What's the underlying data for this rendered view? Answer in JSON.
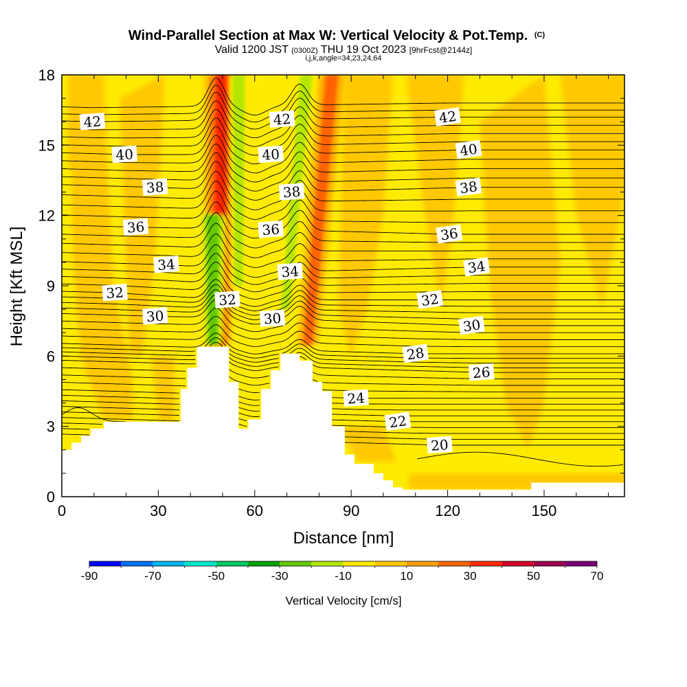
{
  "chart_data": {
    "type": "heatmap",
    "title": "Wind-Parallel Section at Max W: Vertical Velocity & Pot.Temp.",
    "title_mark": "(C)",
    "subtitle": {
      "valid": "Valid 1200 JST",
      "utc": "(0300Z)",
      "date": "THU 19 Oct 2023",
      "fcst": "[9hrFcst@2144z]"
    },
    "grid_info": "i,j,k,angle=34,23,24,64",
    "xlabel": "Distance [nm]",
    "ylabel": "Height [Kft MSL]",
    "xlim": [
      0,
      175
    ],
    "ylim": [
      0,
      18
    ],
    "x_ticks": [
      "0",
      "30",
      "60",
      "90",
      "120",
      "150"
    ],
    "y_ticks": [
      "0",
      "3",
      "6",
      "9",
      "12",
      "15",
      "18"
    ],
    "colorbar": {
      "label": "Vertical Velocity [cm/s]",
      "min": -90,
      "max": 70,
      "step": 10,
      "tick_labels": [
        "-90",
        "-70",
        "-50",
        "-30",
        "-10",
        "10",
        "30",
        "50",
        "70"
      ],
      "colors": [
        "#0000ff",
        "#0070ff",
        "#00b4f0",
        "#00e6c8",
        "#00c864",
        "#00a000",
        "#64c800",
        "#b4e600",
        "#ffeb00",
        "#ffc800",
        "#ffa000",
        "#ff6400",
        "#ff2800",
        "#d70028",
        "#a00050",
        "#780078"
      ]
    },
    "terrain_profile": [
      [
        0,
        2
      ],
      [
        3,
        2
      ],
      [
        3,
        2.3
      ],
      [
        6,
        2.3
      ],
      [
        6,
        2.6
      ],
      [
        9,
        2.6
      ],
      [
        9,
        2.9
      ],
      [
        13,
        2.9
      ],
      [
        13,
        3.2
      ],
      [
        37,
        3.2
      ],
      [
        37,
        4.6
      ],
      [
        39,
        4.6
      ],
      [
        39,
        5.5
      ],
      [
        42,
        5.5
      ],
      [
        42,
        6.4
      ],
      [
        52,
        6.4
      ],
      [
        52,
        4.9
      ],
      [
        55,
        4.9
      ],
      [
        55,
        2.9
      ],
      [
        58,
        2.9
      ],
      [
        58,
        3.3
      ],
      [
        62,
        3.3
      ],
      [
        62,
        4.6
      ],
      [
        65,
        4.6
      ],
      [
        65,
        5.4
      ],
      [
        68,
        5.4
      ],
      [
        68,
        6.1
      ],
      [
        74,
        6.1
      ],
      [
        74,
        5.8
      ],
      [
        78,
        5.8
      ],
      [
        78,
        4.9
      ],
      [
        81,
        4.9
      ],
      [
        81,
        4.5
      ],
      [
        84,
        4.5
      ],
      [
        84,
        3
      ],
      [
        88,
        3
      ],
      [
        88,
        1.8
      ],
      [
        91,
        1.8
      ],
      [
        91,
        1.4
      ],
      [
        97,
        1.4
      ],
      [
        97,
        1
      ],
      [
        100,
        1
      ],
      [
        100,
        0.7
      ],
      [
        103,
        0.7
      ],
      [
        103,
        0.4
      ],
      [
        106,
        0.4
      ],
      [
        106,
        0.3
      ],
      [
        146,
        0.3
      ],
      [
        146,
        0.6
      ],
      [
        175,
        0.6
      ]
    ],
    "theta_isentropes": [
      {
        "value": "20",
        "label_x": 117.5,
        "label_y": 2.2
      },
      {
        "value": "22",
        "label_x": 104.5,
        "label_y": 3.2
      },
      {
        "value": "24",
        "label_x": 91.5,
        "label_y": 4.2
      },
      {
        "value": "26",
        "label_x": 130.5,
        "label_y": 5.3
      },
      {
        "value": "28",
        "label_x": 110,
        "label_y": 6.1
      },
      {
        "value": "30",
        "label_x": 29,
        "label_y": 7.7
      },
      {
        "value": "30",
        "label_x": 65.5,
        "label_y": 7.6
      },
      {
        "value": "30",
        "label_x": 127.5,
        "label_y": 7.3
      },
      {
        "value": "32",
        "label_x": 16.5,
        "label_y": 8.7
      },
      {
        "value": "32",
        "label_x": 51.5,
        "label_y": 8.4
      },
      {
        "value": "32",
        "label_x": 114.5,
        "label_y": 8.4
      },
      {
        "value": "34",
        "label_x": 32.5,
        "label_y": 9.9
      },
      {
        "value": "34",
        "label_x": 71,
        "label_y": 9.6
      },
      {
        "value": "34",
        "label_x": 129,
        "label_y": 9.8
      },
      {
        "value": "36",
        "label_x": 23,
        "label_y": 11.5
      },
      {
        "value": "36",
        "label_x": 65,
        "label_y": 11.4
      },
      {
        "value": "36",
        "label_x": 120.5,
        "label_y": 11.2
      },
      {
        "value": "38",
        "label_x": 29,
        "label_y": 13.2
      },
      {
        "value": "38",
        "label_x": 71.5,
        "label_y": 13
      },
      {
        "value": "38",
        "label_x": 126.5,
        "label_y": 13.2
      },
      {
        "value": "40",
        "label_x": 19.5,
        "label_y": 14.6
      },
      {
        "value": "40",
        "label_x": 65,
        "label_y": 14.6
      },
      {
        "value": "40",
        "label_x": 126.5,
        "label_y": 14.8
      },
      {
        "value": "42",
        "label_x": 9.5,
        "label_y": 16
      },
      {
        "value": "42",
        "label_x": 68.5,
        "label_y": 16.1
      },
      {
        "value": "42",
        "label_x": 120,
        "label_y": 16.2
      }
    ],
    "velocity_features": [
      {
        "kind": "updraft",
        "x_bottom": 48.5,
        "x_top": 50,
        "y_bottom": 6.5,
        "y_top": 18,
        "peak_w": 40
      },
      {
        "kind": "downdraft",
        "x_bottom": 47,
        "x_top": 47,
        "y_bottom": 6.5,
        "y_top": 12,
        "peak_w": -30
      },
      {
        "kind": "downdraft",
        "x_bottom": 55,
        "x_top": 55,
        "y_bottom": 9,
        "y_top": 18,
        "peak_w": -20
      },
      {
        "kind": "updraft",
        "x_bottom": 76.5,
        "x_top": 84,
        "y_bottom": 6.5,
        "y_top": 18,
        "peak_w": 30
      },
      {
        "kind": "downdraft",
        "x_bottom": 69.5,
        "x_top": 76,
        "y_bottom": 8,
        "y_top": 18,
        "peak_w": -20
      }
    ]
  }
}
